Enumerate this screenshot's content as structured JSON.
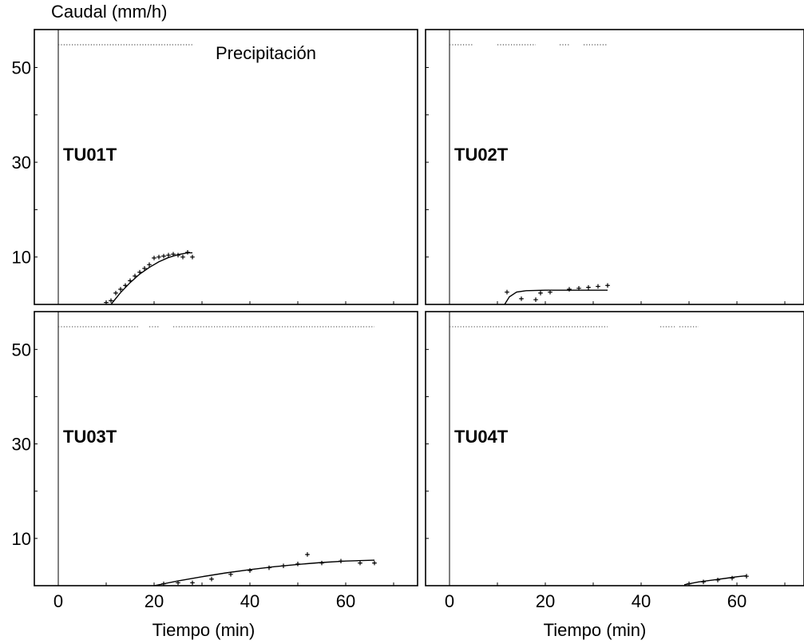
{
  "chart_data": {
    "type": "scatter",
    "ylabel": "Caudal (mm/h)",
    "xlabel": "Tiempo (min)",
    "xticks": [
      0,
      20,
      40,
      60
    ],
    "yticks": [
      10,
      30,
      50
    ],
    "xlim": [
      -5,
      75
    ],
    "ylim": [
      0,
      58
    ],
    "legend": {
      "label": "Precipitación",
      "placement": "top"
    },
    "precipitation_level": 54.8,
    "panels": [
      {
        "name": "TU01T",
        "precipitation": [
          [
            0,
            28
          ]
        ],
        "observed": [
          {
            "x": 10,
            "y": 0.4
          },
          {
            "x": 11,
            "y": 0.8
          },
          {
            "x": 12,
            "y": 2.4
          },
          {
            "x": 13,
            "y": 3.2
          },
          {
            "x": 14,
            "y": 4.0
          },
          {
            "x": 15,
            "y": 5.0
          },
          {
            "x": 16,
            "y": 6.0
          },
          {
            "x": 17,
            "y": 6.8
          },
          {
            "x": 18,
            "y": 7.6
          },
          {
            "x": 19,
            "y": 8.4
          },
          {
            "x": 20,
            "y": 9.8
          },
          {
            "x": 21,
            "y": 10.0
          },
          {
            "x": 22,
            "y": 10.2
          },
          {
            "x": 23,
            "y": 10.4
          },
          {
            "x": 24,
            "y": 10.6
          },
          {
            "x": 25,
            "y": 10.4
          },
          {
            "x": 26,
            "y": 10.0
          },
          {
            "x": 27,
            "y": 11.0
          },
          {
            "x": 28,
            "y": 10.0
          }
        ],
        "fitted": [
          [
            11,
            0
          ],
          [
            13,
            2.5
          ],
          [
            15,
            4.6
          ],
          [
            17,
            6.4
          ],
          [
            19,
            7.8
          ],
          [
            21,
            9.0
          ],
          [
            23,
            9.9
          ],
          [
            25,
            10.5
          ],
          [
            27,
            10.9
          ],
          [
            28,
            10.9
          ]
        ]
      },
      {
        "name": "TU02T",
        "precipitation": [
          [
            0,
            5
          ],
          [
            10,
            18
          ],
          [
            23,
            25
          ],
          [
            28,
            33
          ]
        ],
        "observed": [
          {
            "x": 12,
            "y": 2.6
          },
          {
            "x": 15,
            "y": 1.2
          },
          {
            "x": 18,
            "y": 1.0
          },
          {
            "x": 19,
            "y": 2.4
          },
          {
            "x": 21,
            "y": 2.6
          },
          {
            "x": 25,
            "y": 3.2
          },
          {
            "x": 27,
            "y": 3.4
          },
          {
            "x": 29,
            "y": 3.6
          },
          {
            "x": 31,
            "y": 3.8
          },
          {
            "x": 33,
            "y": 4.0
          }
        ],
        "fitted": [
          [
            11.5,
            0
          ],
          [
            12.5,
            1.6
          ],
          [
            14,
            2.6
          ],
          [
            16,
            2.9
          ],
          [
            20,
            3.0
          ],
          [
            33,
            3.0
          ]
        ]
      },
      {
        "name": "TU03T",
        "precipitation": [
          [
            0,
            17
          ],
          [
            19,
            21
          ],
          [
            24,
            66
          ]
        ],
        "observed": [
          {
            "x": 22,
            "y": 0.4
          },
          {
            "x": 25,
            "y": 0.6
          },
          {
            "x": 28,
            "y": 0.6
          },
          {
            "x": 32,
            "y": 1.4
          },
          {
            "x": 36,
            "y": 2.4
          },
          {
            "x": 40,
            "y": 3.2
          },
          {
            "x": 44,
            "y": 3.8
          },
          {
            "x": 47,
            "y": 4.2
          },
          {
            "x": 50,
            "y": 4.6
          },
          {
            "x": 52,
            "y": 6.6
          },
          {
            "x": 55,
            "y": 4.8
          },
          {
            "x": 59,
            "y": 5.2
          },
          {
            "x": 63,
            "y": 4.8
          },
          {
            "x": 66,
            "y": 4.8
          }
        ],
        "fitted": [
          [
            20,
            0
          ],
          [
            25,
            1.0
          ],
          [
            30,
            1.9
          ],
          [
            35,
            2.7
          ],
          [
            40,
            3.4
          ],
          [
            45,
            4.0
          ],
          [
            50,
            4.5
          ],
          [
            55,
            4.9
          ],
          [
            60,
            5.2
          ],
          [
            66,
            5.4
          ]
        ]
      },
      {
        "name": "TU04T",
        "precipitation": [
          [
            0,
            33
          ],
          [
            44,
            47
          ],
          [
            48,
            52
          ]
        ],
        "observed": [
          {
            "x": 50,
            "y": 0.4
          },
          {
            "x": 53,
            "y": 0.8
          },
          {
            "x": 56,
            "y": 1.2
          },
          {
            "x": 59,
            "y": 1.6
          },
          {
            "x": 62,
            "y": 2.0
          }
        ],
        "fitted": [
          [
            49,
            0.2
          ],
          [
            52,
            0.8
          ],
          [
            55,
            1.2
          ],
          [
            58,
            1.6
          ],
          [
            60,
            1.9
          ],
          [
            62,
            2.1
          ]
        ]
      }
    ]
  }
}
